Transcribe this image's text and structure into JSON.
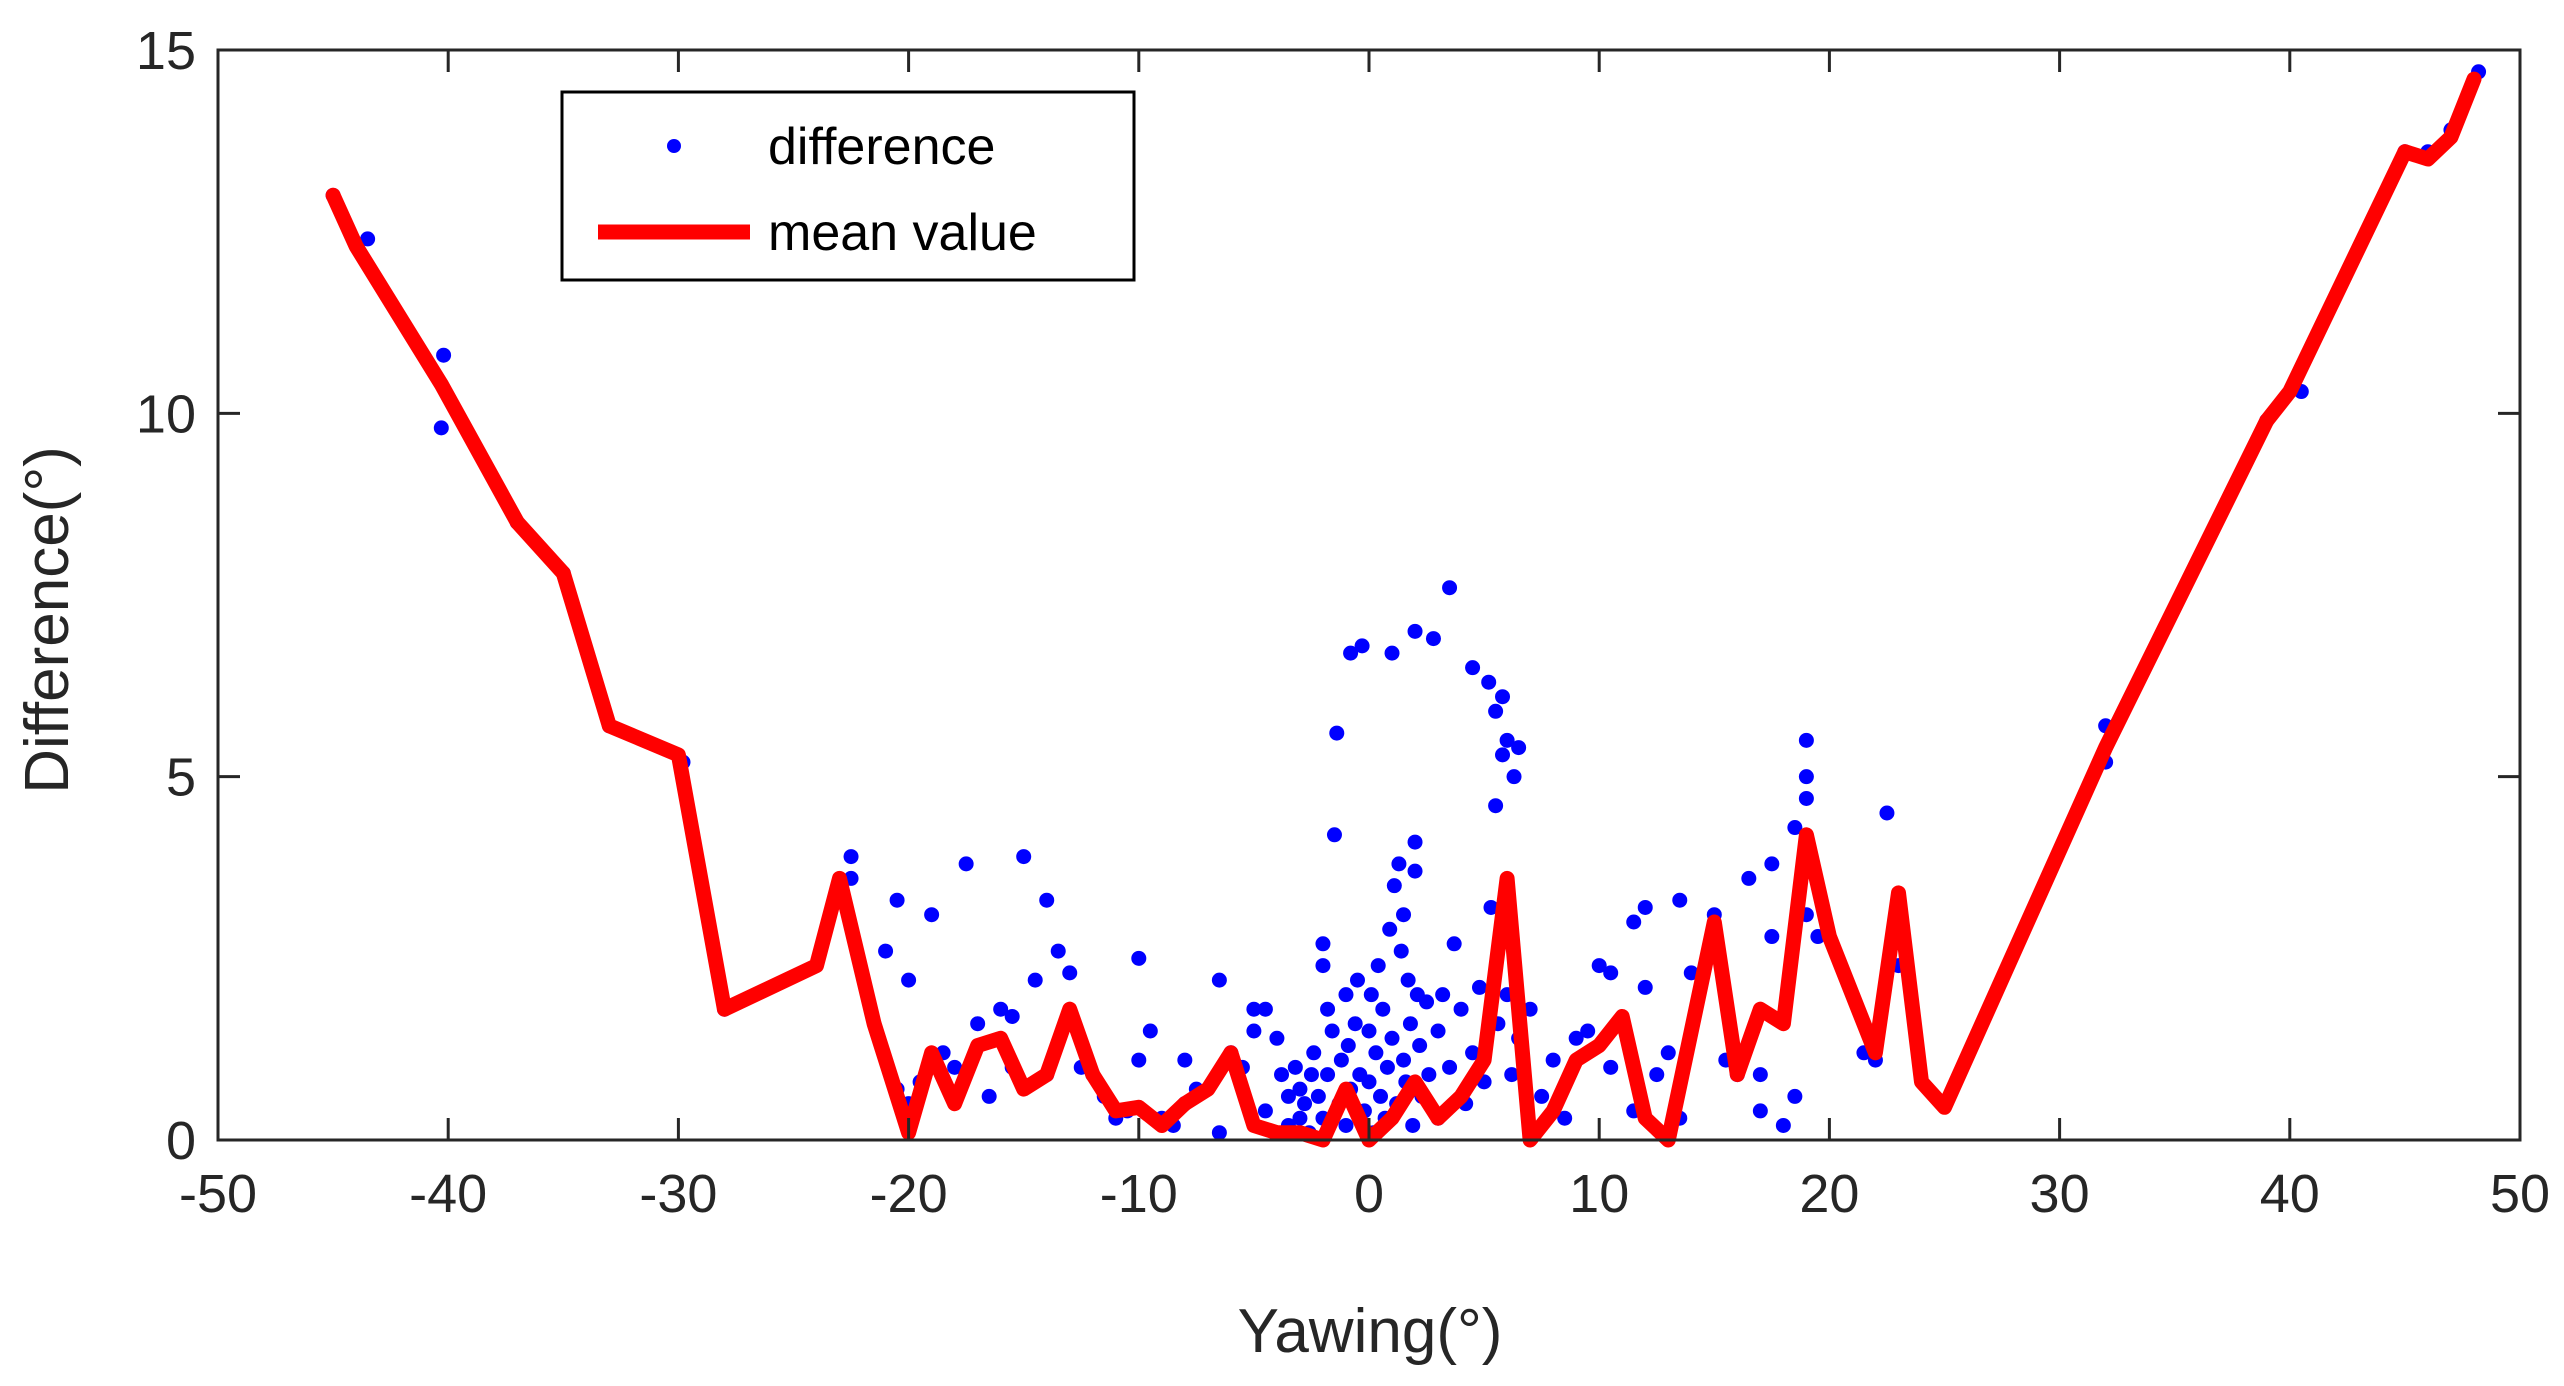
{
  "chart_data": {
    "type": "scatter",
    "title": "",
    "xlabel": "Yawing(°)",
    "ylabel": "Difference(°)",
    "xlim": [
      -50,
      50
    ],
    "ylim": [
      0,
      15
    ],
    "xticks": [
      -50,
      -40,
      -30,
      -20,
      -10,
      0,
      10,
      20,
      30,
      40,
      50
    ],
    "yticks": [
      0,
      5,
      10,
      15
    ],
    "xtick_labels": [
      "-50",
      "-40",
      "-30",
      "-20",
      "-10",
      "0",
      "10",
      "20",
      "30",
      "40",
      "50"
    ],
    "ytick_labels": [
      "0",
      "5",
      "10",
      "15"
    ],
    "grid": false,
    "legend": {
      "position": "top-left",
      "entries": [
        {
          "label": "difference",
          "kind": "marker"
        },
        {
          "label": "mean value",
          "kind": "line"
        }
      ]
    },
    "colors": {
      "difference": "#0000ff",
      "mean_value": "#ff0000",
      "axis": "#262626"
    },
    "series": [
      {
        "name": "difference",
        "kind": "scatter",
        "points": [
          [
            -45,
            13.0
          ],
          [
            -43.5,
            12.4
          ],
          [
            -40.2,
            10.8
          ],
          [
            -40.3,
            9.8
          ],
          [
            -37,
            8.5
          ],
          [
            -35,
            7.8
          ],
          [
            -33,
            5.7
          ],
          [
            -29.8,
            5.2
          ],
          [
            -28,
            1.8
          ],
          [
            -22.5,
            3.9
          ],
          [
            -22.5,
            3.6
          ],
          [
            -20.5,
            3.3
          ],
          [
            -21,
            2.6
          ],
          [
            -20,
            2.2
          ],
          [
            -20.5,
            0.7
          ],
          [
            -20,
            0.5
          ],
          [
            -19.5,
            0.8
          ],
          [
            -19,
            3.1
          ],
          [
            -18.5,
            1.2
          ],
          [
            -18,
            1.0
          ],
          [
            -17.5,
            3.8
          ],
          [
            -17,
            1.6
          ],
          [
            -16.5,
            0.6
          ],
          [
            -16,
            1.8
          ],
          [
            -15.5,
            1.0
          ],
          [
            -15.5,
            1.7
          ],
          [
            -15,
            3.9
          ],
          [
            -14.5,
            2.2
          ],
          [
            -14,
            0.9
          ],
          [
            -14,
            3.3
          ],
          [
            -13.5,
            2.6
          ],
          [
            -13,
            2.3
          ],
          [
            -13,
            1.6
          ],
          [
            -12.5,
            1.0
          ],
          [
            -12,
            0.9
          ],
          [
            -11.5,
            0.6
          ],
          [
            -11,
            0.3
          ],
          [
            -10.5,
            0.4
          ],
          [
            -10,
            1.1
          ],
          [
            -10,
            2.5
          ],
          [
            -9.5,
            1.5
          ],
          [
            -9,
            0.3
          ],
          [
            -8.5,
            0.2
          ],
          [
            -8,
            0.5
          ],
          [
            -8,
            1.1
          ],
          [
            -7.5,
            0.7
          ],
          [
            -6.5,
            2.2
          ],
          [
            -6.5,
            0.1
          ],
          [
            -6,
            1.2
          ],
          [
            -5.5,
            1.0
          ],
          [
            -5,
            1.5
          ],
          [
            -5,
            1.8
          ],
          [
            -4.5,
            1.8
          ],
          [
            -4.5,
            0.4
          ],
          [
            -4,
            1.4
          ],
          [
            -3.8,
            0.9
          ],
          [
            -3.5,
            0.6
          ],
          [
            -3.5,
            0.2
          ],
          [
            -3.2,
            1.0
          ],
          [
            -3,
            0.7
          ],
          [
            -3,
            0.3
          ],
          [
            -2.8,
            0.5
          ],
          [
            -2.6,
            0.1
          ],
          [
            -2.5,
            0.9
          ],
          [
            -2.4,
            1.2
          ],
          [
            -2.2,
            0.6
          ],
          [
            -2,
            2.7
          ],
          [
            -2,
            2.4
          ],
          [
            -2,
            0.3
          ],
          [
            -1.8,
            1.8
          ],
          [
            -1.8,
            0.9
          ],
          [
            -1.6,
            1.5
          ],
          [
            -1.5,
            4.2
          ],
          [
            -1.4,
            5.6
          ],
          [
            -1.3,
            0.5
          ],
          [
            -1.2,
            1.1
          ],
          [
            -1,
            2.0
          ],
          [
            -1,
            0.2
          ],
          [
            -0.9,
            1.3
          ],
          [
            -0.8,
            6.7
          ],
          [
            -0.8,
            0.7
          ],
          [
            -0.6,
            1.6
          ],
          [
            -0.5,
            2.2
          ],
          [
            -0.4,
            0.9
          ],
          [
            -0.3,
            6.8
          ],
          [
            -0.2,
            0.4
          ],
          [
            0,
            1.5
          ],
          [
            0,
            0.8
          ],
          [
            0.1,
            2.0
          ],
          [
            0.2,
            0.1
          ],
          [
            0.3,
            1.2
          ],
          [
            0.4,
            2.4
          ],
          [
            0.5,
            0.6
          ],
          [
            0.6,
            1.8
          ],
          [
            0.7,
            0.3
          ],
          [
            0.8,
            1.0
          ],
          [
            0.9,
            2.9
          ],
          [
            1,
            6.7
          ],
          [
            1,
            1.4
          ],
          [
            1.1,
            3.5
          ],
          [
            1.2,
            0.5
          ],
          [
            1.3,
            3.8
          ],
          [
            1.4,
            2.6
          ],
          [
            1.5,
            1.1
          ],
          [
            1.5,
            3.1
          ],
          [
            1.6,
            0.8
          ],
          [
            1.7,
            2.2
          ],
          [
            1.8,
            1.6
          ],
          [
            1.9,
            0.2
          ],
          [
            2,
            7.0
          ],
          [
            2,
            4.1
          ],
          [
            2,
            3.7
          ],
          [
            2.1,
            2.0
          ],
          [
            2.2,
            1.3
          ],
          [
            2.3,
            0.6
          ],
          [
            2.5,
            1.9
          ],
          [
            2.6,
            0.9
          ],
          [
            2.8,
            6.9
          ],
          [
            3,
            1.5
          ],
          [
            3,
            0.3
          ],
          [
            3.2,
            2.0
          ],
          [
            3.5,
            7.6
          ],
          [
            3.5,
            1.0
          ],
          [
            3.7,
            2.7
          ],
          [
            4,
            1.8
          ],
          [
            4.2,
            0.5
          ],
          [
            4.5,
            6.5
          ],
          [
            4.5,
            1.2
          ],
          [
            4.8,
            2.1
          ],
          [
            5,
            0.8
          ],
          [
            5.2,
            6.3
          ],
          [
            5.3,
            3.2
          ],
          [
            5.5,
            5.9
          ],
          [
            5.5,
            4.6
          ],
          [
            5.6,
            1.6
          ],
          [
            5.8,
            6.1
          ],
          [
            5.8,
            5.3
          ],
          [
            6,
            5.5
          ],
          [
            6,
            2.0
          ],
          [
            6.2,
            0.9
          ],
          [
            6.3,
            5.0
          ],
          [
            6.5,
            5.4
          ],
          [
            6.5,
            1.4
          ],
          [
            7,
            1.8
          ],
          [
            7.5,
            0.6
          ],
          [
            8,
            1.1
          ],
          [
            8.5,
            0.3
          ],
          [
            9,
            1.4
          ],
          [
            9.5,
            1.5
          ],
          [
            10,
            2.4
          ],
          [
            10.5,
            1.0
          ],
          [
            10.5,
            2.3
          ],
          [
            11,
            1.6
          ],
          [
            11.5,
            3.0
          ],
          [
            11.5,
            0.4
          ],
          [
            12,
            2.1
          ],
          [
            12,
            3.2
          ],
          [
            12.5,
            0.9
          ],
          [
            13,
            1.2
          ],
          [
            13.5,
            0.3
          ],
          [
            13.5,
            3.3
          ],
          [
            14,
            2.3
          ],
          [
            15,
            3.1
          ],
          [
            15.5,
            1.1
          ],
          [
            16,
            0.9
          ],
          [
            16.5,
            3.6
          ],
          [
            17,
            0.9
          ],
          [
            17,
            0.4
          ],
          [
            17.5,
            3.8
          ],
          [
            17.5,
            2.8
          ],
          [
            18,
            1.7
          ],
          [
            18,
            0.2
          ],
          [
            18.5,
            0.6
          ],
          [
            18.5,
            4.3
          ],
          [
            19,
            5.5
          ],
          [
            19,
            5.0
          ],
          [
            19,
            4.7
          ],
          [
            19,
            3.1
          ],
          [
            19.5,
            2.8
          ],
          [
            21.5,
            1.2
          ],
          [
            22,
            1.1
          ],
          [
            22.5,
            4.5
          ],
          [
            23,
            2.4
          ],
          [
            25,
            0.5
          ],
          [
            32,
            5.2
          ],
          [
            32,
            5.7
          ],
          [
            39,
            9.9
          ],
          [
            40.5,
            10.3
          ],
          [
            45,
            13.6
          ],
          [
            46,
            13.6
          ],
          [
            47,
            13.9
          ],
          [
            48.2,
            14.7
          ]
        ]
      },
      {
        "name": "mean value",
        "kind": "line",
        "points": [
          [
            -45,
            13.0
          ],
          [
            -44,
            12.3
          ],
          [
            -40.3,
            10.4
          ],
          [
            -37,
            8.5
          ],
          [
            -35,
            7.8
          ],
          [
            -33,
            5.7
          ],
          [
            -30,
            5.3
          ],
          [
            -28,
            1.8
          ],
          [
            -24,
            2.4
          ],
          [
            -23,
            3.6
          ],
          [
            -21.5,
            1.6
          ],
          [
            -20,
            0.1
          ],
          [
            -19,
            1.2
          ],
          [
            -18,
            0.5
          ],
          [
            -17,
            1.3
          ],
          [
            -16,
            1.4
          ],
          [
            -15,
            0.7
          ],
          [
            -14,
            0.9
          ],
          [
            -13,
            1.8
          ],
          [
            -12,
            0.9
          ],
          [
            -11,
            0.4
          ],
          [
            -10,
            0.45
          ],
          [
            -9,
            0.2
          ],
          [
            -8,
            0.5
          ],
          [
            -7,
            0.7
          ],
          [
            -6,
            1.2
          ],
          [
            -5,
            0.2
          ],
          [
            -4,
            0.1
          ],
          [
            -3,
            0.1
          ],
          [
            -2,
            0.0
          ],
          [
            -1,
            0.7
          ],
          [
            0,
            0.0
          ],
          [
            1,
            0.3
          ],
          [
            2,
            0.8
          ],
          [
            3,
            0.3
          ],
          [
            4,
            0.6
          ],
          [
            5,
            1.1
          ],
          [
            6,
            3.6
          ],
          [
            7,
            0.0
          ],
          [
            8,
            0.4
          ],
          [
            9,
            1.1
          ],
          [
            10,
            1.3
          ],
          [
            11,
            1.7
          ],
          [
            12,
            0.3
          ],
          [
            13,
            0.0
          ],
          [
            15,
            3.0
          ],
          [
            16,
            0.9
          ],
          [
            17,
            1.8
          ],
          [
            18,
            1.6
          ],
          [
            19,
            4.2
          ],
          [
            20,
            2.8
          ],
          [
            22,
            1.2
          ],
          [
            23,
            3.4
          ],
          [
            24,
            0.8
          ],
          [
            25,
            0.45
          ],
          [
            32,
            5.4
          ],
          [
            39,
            9.9
          ],
          [
            40,
            10.3
          ],
          [
            45,
            13.6
          ],
          [
            46,
            13.5
          ],
          [
            47,
            13.8
          ],
          [
            48,
            14.6
          ]
        ]
      }
    ]
  }
}
